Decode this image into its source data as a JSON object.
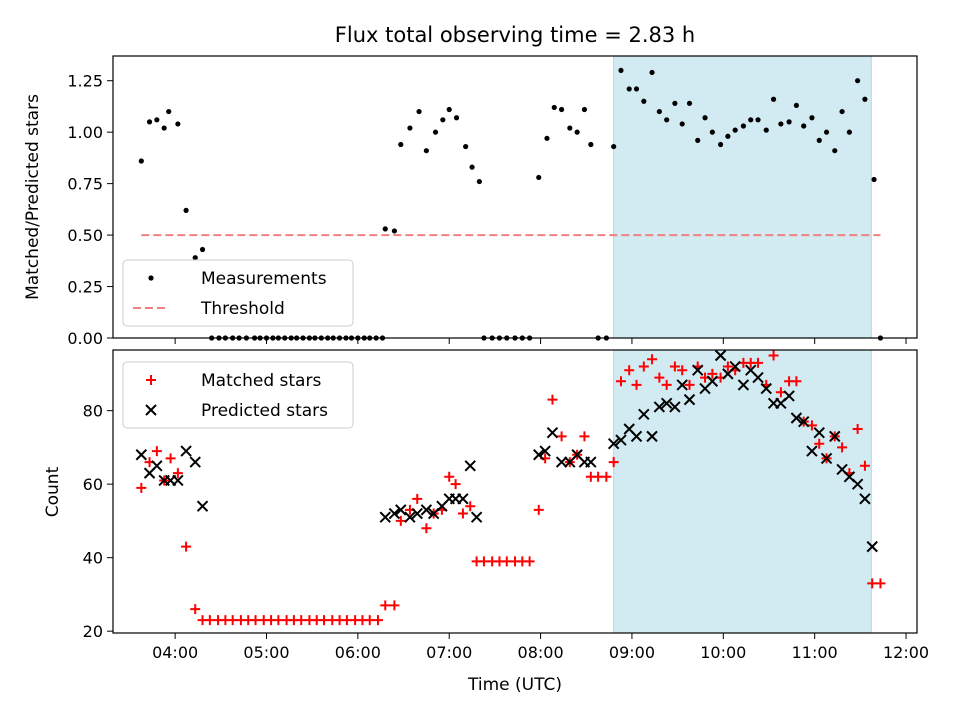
{
  "figure": {
    "title": "Flux total observing time = 2.83 h",
    "xlabel": "Time (UTC)"
  },
  "chart_data": [
    {
      "type": "scatter",
      "panel": "top",
      "ylabel": "Matched/Predicted stars",
      "ylim": [
        0,
        1.37
      ],
      "yticks": [
        "0.00",
        "0.25",
        "0.50",
        "0.75",
        "1.00",
        "1.25"
      ],
      "ytick_values": [
        0,
        0.25,
        0.5,
        0.75,
        1.0,
        1.25
      ],
      "legend_position": "lower-left",
      "series": [
        {
          "name": "Measurements",
          "marker": "dot",
          "color": "#000000",
          "points": [
            [
              3.63,
              0.86
            ],
            [
              3.72,
              1.05
            ],
            [
              3.8,
              1.06
            ],
            [
              3.88,
              1.02
            ],
            [
              3.93,
              1.1
            ],
            [
              4.03,
              1.04
            ],
            [
              4.12,
              0.62
            ],
            [
              4.22,
              0.39
            ],
            [
              4.3,
              0.43
            ],
            [
              4.4,
              0
            ],
            [
              4.48,
              0
            ],
            [
              4.55,
              0
            ],
            [
              4.63,
              0
            ],
            [
              4.7,
              0
            ],
            [
              4.78,
              0
            ],
            [
              4.87,
              0
            ],
            [
              4.93,
              0
            ],
            [
              5.0,
              0
            ],
            [
              5.07,
              0
            ],
            [
              5.13,
              0
            ],
            [
              5.2,
              0
            ],
            [
              5.27,
              0
            ],
            [
              5.33,
              0
            ],
            [
              5.4,
              0
            ],
            [
              5.47,
              0
            ],
            [
              5.53,
              0
            ],
            [
              5.6,
              0
            ],
            [
              5.67,
              0
            ],
            [
              5.73,
              0
            ],
            [
              5.8,
              0
            ],
            [
              5.87,
              0
            ],
            [
              5.93,
              0
            ],
            [
              6.0,
              0
            ],
            [
              6.07,
              0
            ],
            [
              6.13,
              0
            ],
            [
              6.2,
              0
            ],
            [
              6.27,
              0
            ],
            [
              6.3,
              0.53
            ],
            [
              6.4,
              0.52
            ],
            [
              6.47,
              0.94
            ],
            [
              6.57,
              1.02
            ],
            [
              6.67,
              1.1
            ],
            [
              6.75,
              0.91
            ],
            [
              6.85,
              1.0
            ],
            [
              6.93,
              1.06
            ],
            [
              7.0,
              1.11
            ],
            [
              7.08,
              1.07
            ],
            [
              7.18,
              0.93
            ],
            [
              7.25,
              0.83
            ],
            [
              7.33,
              0.76
            ],
            [
              7.38,
              0
            ],
            [
              7.47,
              0
            ],
            [
              7.55,
              0
            ],
            [
              7.63,
              0
            ],
            [
              7.72,
              0
            ],
            [
              7.8,
              0
            ],
            [
              7.88,
              0
            ],
            [
              7.98,
              0.78
            ],
            [
              8.07,
              0.97
            ],
            [
              8.15,
              1.12
            ],
            [
              8.23,
              1.11
            ],
            [
              8.32,
              1.02
            ],
            [
              8.4,
              1.0
            ],
            [
              8.48,
              1.11
            ],
            [
              8.55,
              0.94
            ],
            [
              8.63,
              0
            ],
            [
              8.72,
              0
            ],
            [
              8.8,
              0.93
            ],
            [
              8.88,
              1.3
            ],
            [
              8.97,
              1.21
            ],
            [
              9.05,
              1.21
            ],
            [
              9.13,
              1.15
            ],
            [
              9.22,
              1.29
            ],
            [
              9.3,
              1.1
            ],
            [
              9.38,
              1.06
            ],
            [
              9.47,
              1.14
            ],
            [
              9.55,
              1.04
            ],
            [
              9.63,
              1.14
            ],
            [
              9.72,
              0.96
            ],
            [
              9.8,
              1.07
            ],
            [
              9.88,
              1.0
            ],
            [
              9.97,
              0.94
            ],
            [
              10.05,
              0.98
            ],
            [
              10.13,
              1.01
            ],
            [
              10.22,
              1.03
            ],
            [
              10.3,
              1.06
            ],
            [
              10.38,
              1.06
            ],
            [
              10.47,
              1.01
            ],
            [
              10.55,
              1.16
            ],
            [
              10.63,
              1.04
            ],
            [
              10.72,
              1.05
            ],
            [
              10.8,
              1.13
            ],
            [
              10.88,
              1.03
            ],
            [
              10.97,
              1.07
            ],
            [
              11.05,
              0.96
            ],
            [
              11.13,
              1.0
            ],
            [
              11.22,
              0.91
            ],
            [
              11.3,
              1.1
            ],
            [
              11.38,
              1.0
            ],
            [
              11.47,
              1.25
            ],
            [
              11.55,
              1.16
            ],
            [
              11.65,
              0.77
            ],
            [
              11.72,
              0
            ]
          ]
        },
        {
          "name": "Threshold",
          "marker": "dashed-line",
          "color": "#f08080",
          "x": [
            3.63,
            11.72
          ],
          "y": [
            0.5,
            0.5
          ]
        }
      ],
      "shaded_region": {
        "x": [
          8.8,
          11.62
        ],
        "color": "#add8e6"
      }
    },
    {
      "type": "scatter",
      "panel": "bottom",
      "ylabel": "Count",
      "ylim": [
        19.5,
        96.5
      ],
      "yticks": [
        "20",
        "40",
        "60",
        "80"
      ],
      "ytick_values": [
        20,
        40,
        60,
        80
      ],
      "xlabel": "Time (UTC)",
      "xticks": [
        "04:00",
        "05:00",
        "06:00",
        "07:00",
        "08:00",
        "09:00",
        "10:00",
        "11:00",
        "12:00"
      ],
      "xtick_values": [
        4,
        5,
        6,
        7,
        8,
        9,
        10,
        11,
        12
      ],
      "xlim": [
        3.32,
        12.12
      ],
      "legend_position": "upper-left",
      "series": [
        {
          "name": "Matched stars",
          "marker": "plus",
          "color": "#ff0000",
          "points": [
            [
              3.63,
              59
            ],
            [
              3.72,
              66
            ],
            [
              3.8,
              69
            ],
            [
              3.88,
              61
            ],
            [
              3.95,
              67
            ],
            [
              4.03,
              63
            ],
            [
              4.12,
              43
            ],
            [
              4.22,
              26
            ],
            [
              4.3,
              23
            ],
            [
              4.38,
              23
            ],
            [
              4.47,
              23
            ],
            [
              4.55,
              23
            ],
            [
              4.63,
              23
            ],
            [
              4.72,
              23
            ],
            [
              4.8,
              23
            ],
            [
              4.88,
              23
            ],
            [
              4.97,
              23
            ],
            [
              5.05,
              23
            ],
            [
              5.13,
              23
            ],
            [
              5.22,
              23
            ],
            [
              5.3,
              23
            ],
            [
              5.38,
              23
            ],
            [
              5.47,
              23
            ],
            [
              5.55,
              23
            ],
            [
              5.63,
              23
            ],
            [
              5.72,
              23
            ],
            [
              5.8,
              23
            ],
            [
              5.88,
              23
            ],
            [
              5.97,
              23
            ],
            [
              6.05,
              23
            ],
            [
              6.13,
              23
            ],
            [
              6.22,
              23
            ],
            [
              6.3,
              27
            ],
            [
              6.4,
              27
            ],
            [
              6.47,
              50
            ],
            [
              6.57,
              53
            ],
            [
              6.65,
              56
            ],
            [
              6.75,
              48
            ],
            [
              6.83,
              52
            ],
            [
              6.92,
              53
            ],
            [
              7.0,
              62
            ],
            [
              7.07,
              60
            ],
            [
              7.15,
              52
            ],
            [
              7.23,
              54
            ],
            [
              7.3,
              39
            ],
            [
              7.38,
              39
            ],
            [
              7.47,
              39
            ],
            [
              7.55,
              39
            ],
            [
              7.63,
              39
            ],
            [
              7.72,
              39
            ],
            [
              7.8,
              39
            ],
            [
              7.88,
              39
            ],
            [
              7.98,
              53
            ],
            [
              8.05,
              67
            ],
            [
              8.13,
              83
            ],
            [
              8.23,
              73
            ],
            [
              8.32,
              66
            ],
            [
              8.4,
              68
            ],
            [
              8.48,
              73
            ],
            [
              8.55,
              62
            ],
            [
              8.63,
              62
            ],
            [
              8.72,
              62
            ],
            [
              8.8,
              66
            ],
            [
              8.88,
              88
            ],
            [
              8.97,
              91
            ],
            [
              9.05,
              87
            ],
            [
              9.13,
              92
            ],
            [
              9.22,
              94
            ],
            [
              9.3,
              89
            ],
            [
              9.38,
              87
            ],
            [
              9.47,
              92
            ],
            [
              9.55,
              91
            ],
            [
              9.63,
              87
            ],
            [
              9.72,
              92
            ],
            [
              9.8,
              89
            ],
            [
              9.88,
              90
            ],
            [
              9.97,
              89
            ],
            [
              10.05,
              92
            ],
            [
              10.13,
              91
            ],
            [
              10.22,
              93
            ],
            [
              10.3,
              93
            ],
            [
              10.38,
              93
            ],
            [
              10.47,
              87
            ],
            [
              10.55,
              95
            ],
            [
              10.63,
              85
            ],
            [
              10.72,
              88
            ],
            [
              10.8,
              88
            ],
            [
              10.88,
              77
            ],
            [
              10.97,
              76
            ],
            [
              11.05,
              71
            ],
            [
              11.13,
              67
            ],
            [
              11.22,
              73
            ],
            [
              11.3,
              70
            ],
            [
              11.38,
              63
            ],
            [
              11.47,
              75
            ],
            [
              11.55,
              65
            ],
            [
              11.63,
              33
            ],
            [
              11.72,
              33
            ]
          ]
        },
        {
          "name": "Predicted stars",
          "marker": "x",
          "color": "#000000",
          "points": [
            [
              3.63,
              68
            ],
            [
              3.72,
              63
            ],
            [
              3.8,
              65
            ],
            [
              3.88,
              61
            ],
            [
              3.95,
              61
            ],
            [
              4.03,
              61
            ],
            [
              4.12,
              69
            ],
            [
              4.22,
              66
            ],
            [
              4.3,
              54
            ],
            [
              6.3,
              51
            ],
            [
              6.4,
              52
            ],
            [
              6.47,
              53
            ],
            [
              6.57,
              51
            ],
            [
              6.65,
              52
            ],
            [
              6.75,
              53
            ],
            [
              6.83,
              52
            ],
            [
              6.92,
              54
            ],
            [
              7.0,
              56
            ],
            [
              7.07,
              56
            ],
            [
              7.15,
              56
            ],
            [
              7.23,
              65
            ],
            [
              7.3,
              51
            ],
            [
              7.98,
              68
            ],
            [
              8.05,
              69
            ],
            [
              8.13,
              74
            ],
            [
              8.23,
              66
            ],
            [
              8.32,
              66
            ],
            [
              8.4,
              68
            ],
            [
              8.48,
              66
            ],
            [
              8.55,
              66
            ],
            [
              8.8,
              71
            ],
            [
              8.88,
              72
            ],
            [
              8.97,
              75
            ],
            [
              9.05,
              73
            ],
            [
              9.13,
              79
            ],
            [
              9.22,
              73
            ],
            [
              9.3,
              81
            ],
            [
              9.38,
              82
            ],
            [
              9.47,
              81
            ],
            [
              9.55,
              87
            ],
            [
              9.63,
              83
            ],
            [
              9.72,
              91
            ],
            [
              9.8,
              86
            ],
            [
              9.88,
              88
            ],
            [
              9.97,
              95
            ],
            [
              10.05,
              90
            ],
            [
              10.13,
              92
            ],
            [
              10.22,
              87
            ],
            [
              10.3,
              91
            ],
            [
              10.38,
              89
            ],
            [
              10.47,
              86
            ],
            [
              10.55,
              82
            ],
            [
              10.63,
              82
            ],
            [
              10.72,
              84
            ],
            [
              10.8,
              78
            ],
            [
              10.88,
              77
            ],
            [
              10.97,
              69
            ],
            [
              11.05,
              74
            ],
            [
              11.13,
              67
            ],
            [
              11.22,
              73
            ],
            [
              11.3,
              64
            ],
            [
              11.38,
              62
            ],
            [
              11.47,
              60
            ],
            [
              11.55,
              56
            ],
            [
              11.63,
              43
            ]
          ]
        }
      ],
      "shaded_region": {
        "x": [
          8.8,
          11.62
        ],
        "color": "#add8e6"
      }
    }
  ]
}
